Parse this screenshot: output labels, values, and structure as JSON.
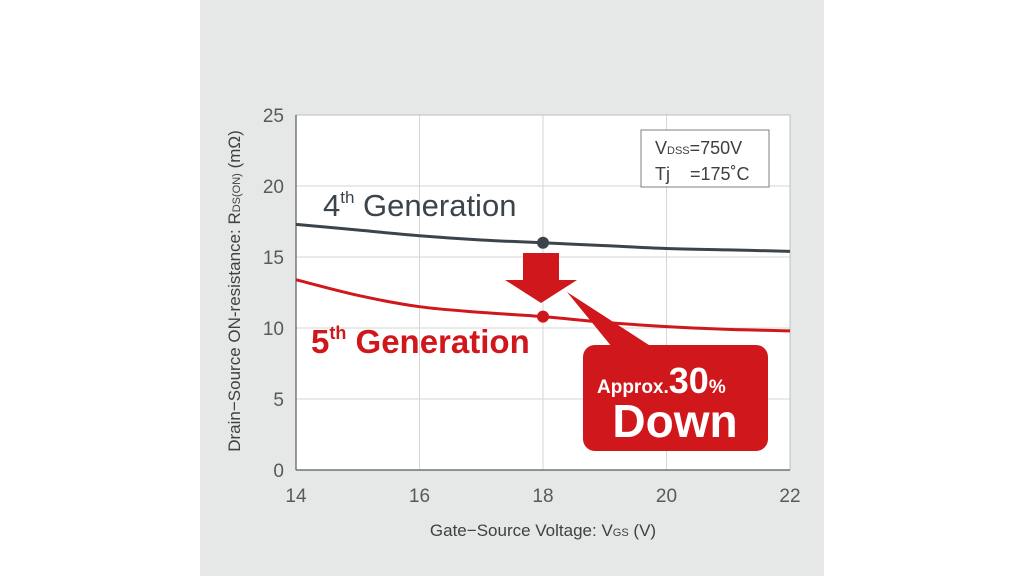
{
  "chart_data": {
    "type": "line",
    "xlabel": "Gate−Source Voltage: VGS (V)",
    "xlabel_main": "Gate−Source Voltage: V",
    "xlabel_sub": "GS",
    "xlabel_unit": " (V)",
    "ylabel": "Drain−Source ON-resistance: RDS(ON) (mΩ)",
    "ylabel_main": "Drain−Source ON-resistance: R",
    "ylabel_sub": "DS(ON)",
    "ylabel_unit": " (mΩ)",
    "xlim": [
      14,
      22
    ],
    "ylim": [
      0,
      25
    ],
    "xticks": [
      "14",
      "16",
      "18",
      "20",
      "22"
    ],
    "yticks": [
      "0",
      "5",
      "10",
      "15",
      "20",
      "25"
    ],
    "grid": true,
    "series": [
      {
        "name": "4th Generation",
        "color": "#3c444b",
        "x": [
          14,
          15,
          16,
          17,
          18,
          19,
          20,
          21,
          22
        ],
        "y": [
          17.3,
          16.9,
          16.5,
          16.2,
          16.0,
          15.8,
          15.6,
          15.5,
          15.4
        ],
        "marker_x": 18,
        "marker_y": 16.0
      },
      {
        "name": "5th Generation",
        "color": "#d0171c",
        "x": [
          14,
          15,
          16,
          17,
          18,
          19,
          20,
          21,
          22
        ],
        "y": [
          13.4,
          12.3,
          11.5,
          11.1,
          10.8,
          10.4,
          10.1,
          9.9,
          9.8
        ],
        "marker_x": 18,
        "marker_y": 10.8
      }
    ],
    "info_box": {
      "line1_prefix": "V",
      "line1_sub": "DSS",
      "line1_rest": "=750V",
      "line2": "Tj    =175˚C"
    },
    "labels": {
      "gen4_num": "4",
      "gen4_sup": "th",
      "gen4_word": " Generation",
      "gen5_num": "5",
      "gen5_sup": "th",
      "gen5_word": " Generation"
    },
    "callout": {
      "approx": "Approx.",
      "value": "30",
      "unit": "%",
      "down": "Down",
      "color": "#d0171c"
    }
  }
}
